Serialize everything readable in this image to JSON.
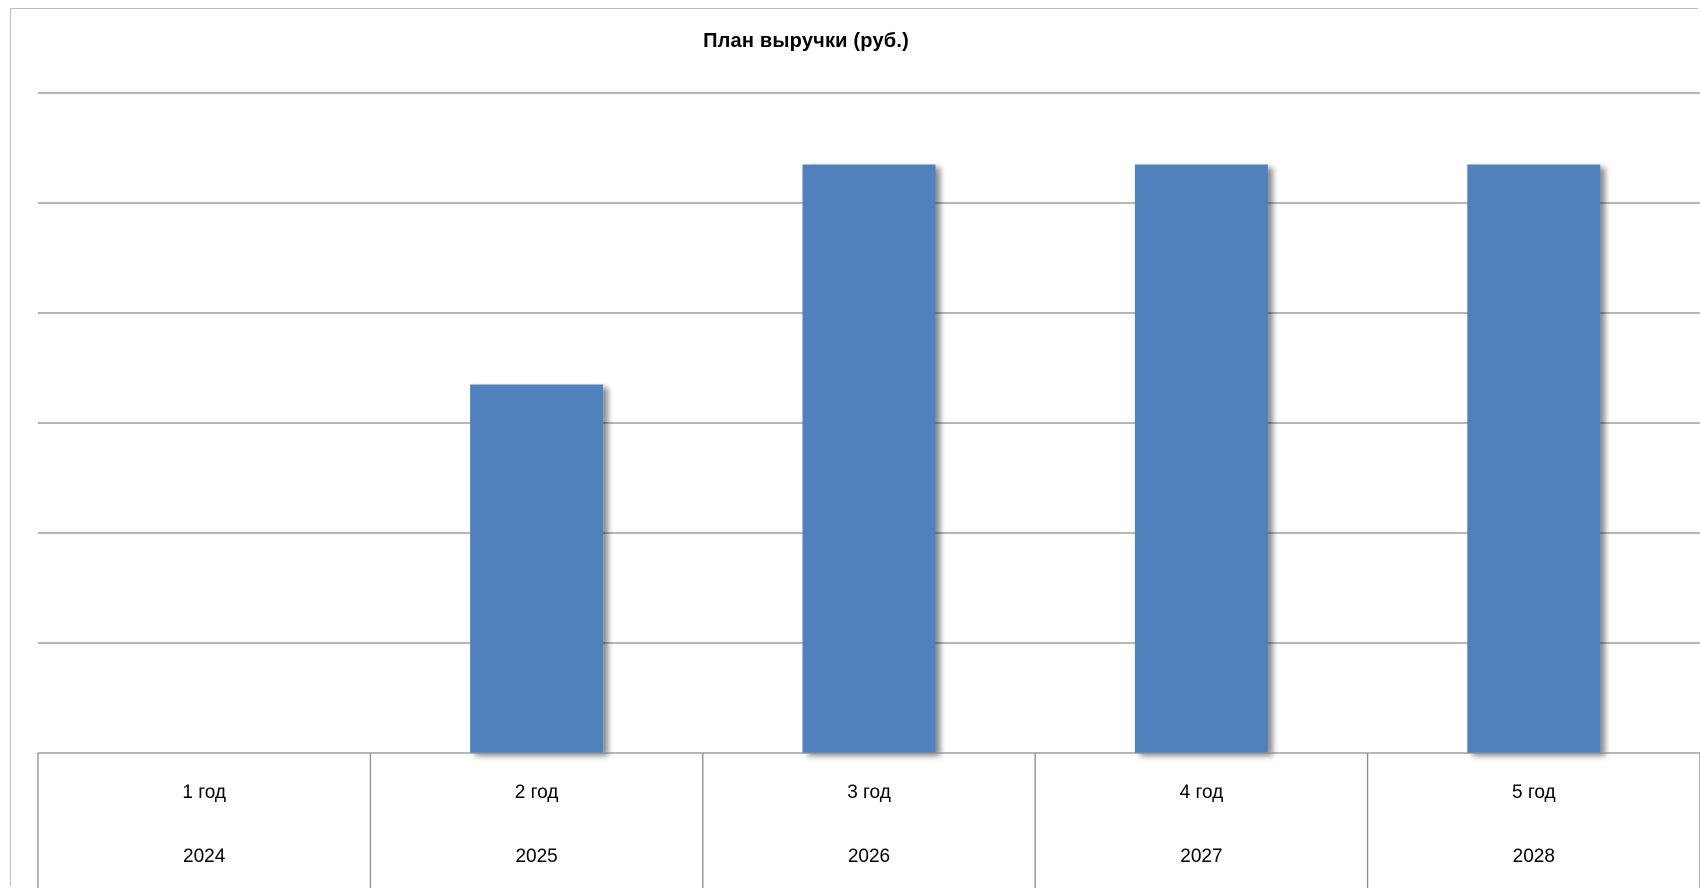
{
  "chart_data": {
    "type": "bar",
    "title": "План выручки (руб.)",
    "categories": [
      [
        "1 год",
        "2024"
      ],
      [
        "2 год",
        "2025"
      ],
      [
        "3 год",
        "2026"
      ],
      [
        "4 год",
        "2027"
      ],
      [
        "5 год",
        "2028"
      ]
    ],
    "series": [
      {
        "values": [
          0,
          3.35,
          5.35,
          5.35,
          5.35
        ],
        "color": "#4f81bd"
      }
    ],
    "ylim": [
      0,
      6
    ],
    "gridlines": true,
    "value_axis_labels_shown": false,
    "legend": "none"
  }
}
